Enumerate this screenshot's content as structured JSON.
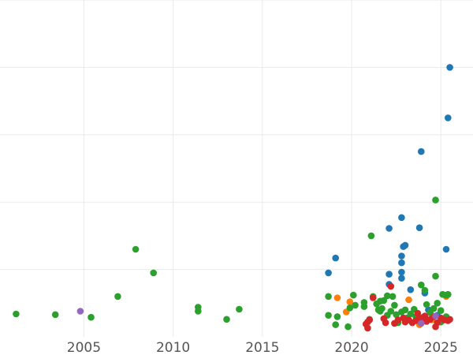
{
  "chart_data": {
    "type": "scatter",
    "title": "",
    "xlabel": "",
    "ylabel": "",
    "xlim": [
      2000.3,
      2026.8
    ],
    "ylim": [
      0,
      5.0
    ],
    "x_ticks": [
      2005,
      2010,
      2015,
      2020,
      2025
    ],
    "y_gridlines": [
      1,
      2,
      3,
      4,
      5
    ],
    "y_tick_labels_visible": false,
    "grid": true,
    "legend": "none",
    "series": [
      {
        "color": "#1f77b4",
        "points": [
          [
            2018.7,
            0.95
          ],
          [
            2019.1,
            1.17
          ],
          [
            2022.1,
            0.93
          ],
          [
            2022.1,
            0.78
          ],
          [
            2022.1,
            1.61
          ],
          [
            2022.8,
            0.87
          ],
          [
            2022.8,
            0.96
          ],
          [
            2022.8,
            1.1
          ],
          [
            2022.8,
            1.2
          ],
          [
            2022.9,
            1.34
          ],
          [
            2023.0,
            1.36
          ],
          [
            2022.8,
            1.77
          ],
          [
            2023.3,
            0.7
          ],
          [
            2023.8,
            1.62
          ],
          [
            2024.1,
            0.65
          ],
          [
            2023.9,
            2.75
          ],
          [
            2025.3,
            1.3
          ],
          [
            2025.4,
            3.25
          ],
          [
            2025.5,
            4.0
          ],
          [
            2024.3,
            0.4
          ],
          [
            2024.8,
            0.32
          ]
        ]
      },
      {
        "color": "#ff7f0e",
        "points": [
          [
            2019.2,
            0.58
          ],
          [
            2019.7,
            0.37
          ],
          [
            2019.9,
            0.52
          ],
          [
            2023.2,
            0.55
          ],
          [
            2023.8,
            0.18
          ],
          [
            2025.3,
            0.6
          ],
          [
            2024.5,
            0.25
          ]
        ]
      },
      {
        "color": "#2ca02c",
        "points": [
          [
            2001.2,
            0.34
          ],
          [
            2003.4,
            0.33
          ],
          [
            2005.4,
            0.29
          ],
          [
            2006.9,
            0.6
          ],
          [
            2007.9,
            1.3
          ],
          [
            2008.9,
            0.95
          ],
          [
            2011.4,
            0.44
          ],
          [
            2011.4,
            0.38
          ],
          [
            2013.0,
            0.26
          ],
          [
            2013.7,
            0.41
          ],
          [
            2018.7,
            0.6
          ],
          [
            2018.7,
            0.32
          ],
          [
            2019.1,
            0.18
          ],
          [
            2019.2,
            0.3
          ],
          [
            2019.8,
            0.15
          ],
          [
            2019.9,
            0.43
          ],
          [
            2020.1,
            0.62
          ],
          [
            2020.2,
            0.47
          ],
          [
            2020.7,
            0.51
          ],
          [
            2020.7,
            0.45
          ],
          [
            2021.0,
            0.26
          ],
          [
            2021.2,
            0.6
          ],
          [
            2021.1,
            1.5
          ],
          [
            2021.4,
            0.49
          ],
          [
            2021.5,
            0.4
          ],
          [
            2021.6,
            0.53
          ],
          [
            2021.7,
            0.42
          ],
          [
            2021.8,
            0.54
          ],
          [
            2022.0,
            0.32
          ],
          [
            2022.0,
            0.61
          ],
          [
            2022.2,
            0.38
          ],
          [
            2022.3,
            0.6
          ],
          [
            2022.5,
            0.33
          ],
          [
            2022.6,
            0.21
          ],
          [
            2022.8,
            0.37
          ],
          [
            2023.0,
            0.4
          ],
          [
            2023.1,
            0.28
          ],
          [
            2023.3,
            0.34
          ],
          [
            2023.5,
            0.41
          ],
          [
            2023.6,
            0.3
          ],
          [
            2023.9,
            0.77
          ],
          [
            2024.1,
            0.69
          ],
          [
            2024.2,
            0.48
          ],
          [
            2024.4,
            0.36
          ],
          [
            2024.6,
            0.42
          ],
          [
            2024.7,
            0.9
          ],
          [
            2024.7,
            2.03
          ],
          [
            2024.8,
            0.5
          ],
          [
            2025.0,
            0.39
          ],
          [
            2025.1,
            0.63
          ],
          [
            2025.3,
            0.62
          ],
          [
            2025.4,
            0.63
          ],
          [
            2025.3,
            0.3
          ],
          [
            2025.0,
            0.22
          ],
          [
            2021.6,
            0.38
          ],
          [
            2022.4,
            0.47
          ]
        ]
      },
      {
        "color": "#d62728",
        "points": [
          [
            2020.8,
            0.19
          ],
          [
            2020.9,
            0.22
          ],
          [
            2021.0,
            0.25
          ],
          [
            2020.9,
            0.13
          ],
          [
            2021.2,
            0.58
          ],
          [
            2021.8,
            0.27
          ],
          [
            2021.9,
            0.21
          ],
          [
            2022.2,
            0.75
          ],
          [
            2022.4,
            0.2
          ],
          [
            2022.6,
            0.25
          ],
          [
            2022.9,
            0.28
          ],
          [
            2023.0,
            0.22
          ],
          [
            2023.2,
            0.25
          ],
          [
            2023.4,
            0.21
          ],
          [
            2023.6,
            0.24
          ],
          [
            2023.7,
            0.35
          ],
          [
            2023.8,
            0.27
          ],
          [
            2024.0,
            0.29
          ],
          [
            2024.1,
            0.31
          ],
          [
            2024.2,
            0.23
          ],
          [
            2024.4,
            0.26
          ],
          [
            2024.6,
            0.3
          ],
          [
            2024.7,
            0.15
          ],
          [
            2024.8,
            0.21
          ],
          [
            2025.0,
            0.28
          ],
          [
            2025.2,
            0.25
          ],
          [
            2025.4,
            0.24
          ],
          [
            2025.5,
            0.26
          ]
        ]
      },
      {
        "color": "#9467bd",
        "points": [
          [
            2004.8,
            0.38
          ],
          [
            2024.7,
            0.31
          ],
          [
            2023.9,
            0.2
          ]
        ]
      }
    ]
  }
}
